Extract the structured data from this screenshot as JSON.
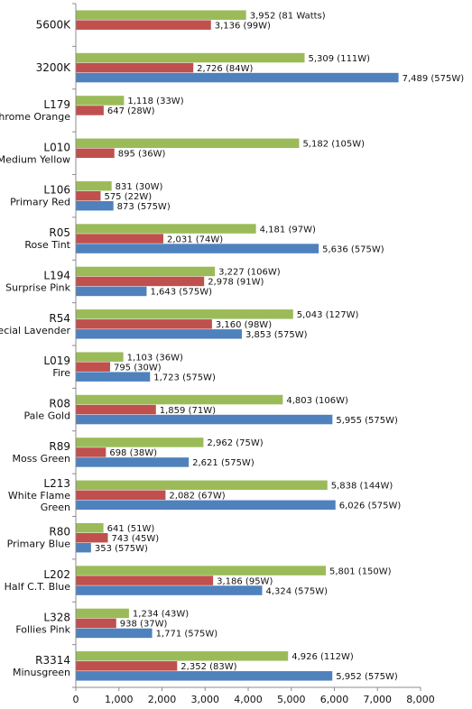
{
  "chart_data": {
    "type": "bar",
    "orientation": "horizontal",
    "xlim": [
      0,
      8000
    ],
    "xticks": [
      "0",
      "1,000",
      "2,000",
      "3,000",
      "4,000",
      "5,000",
      "6,000",
      "7,000",
      "8,000"
    ],
    "grid": false,
    "series_colors": [
      "#9bbb59",
      "#c0504d",
      "#4f81bd"
    ],
    "categories": [
      {
        "label": [
          "5600K"
        ],
        "values": [
          3952,
          3136,
          null
        ],
        "labels": [
          "3,952 (81 Watts)",
          "3,136 (99W)",
          null
        ]
      },
      {
        "label": [
          "3200K"
        ],
        "values": [
          5309,
          2726,
          7489
        ],
        "labels": [
          "5,309 (111W)",
          "2,726 (84W)",
          "7,489 (575W)"
        ]
      },
      {
        "label": [
          "L179",
          "Chrome Orange"
        ],
        "values": [
          1118,
          647,
          null
        ],
        "labels": [
          "1,118 (33W)",
          "647 (28W)",
          null
        ]
      },
      {
        "label": [
          "L010",
          "Medium Yellow"
        ],
        "values": [
          5182,
          895,
          null
        ],
        "labels": [
          "5,182 (105W)",
          "895 (36W)",
          null
        ]
      },
      {
        "label": [
          "L106",
          "Primary Red"
        ],
        "values": [
          831,
          575,
          873
        ],
        "labels": [
          "831 (30W)",
          "575 (22W)",
          "873 (575W)"
        ]
      },
      {
        "label": [
          "R05",
          "Rose Tint"
        ],
        "values": [
          4181,
          2031,
          5636
        ],
        "labels": [
          "4,181 (97W)",
          "2,031 (74W)",
          "5,636 (575W)"
        ]
      },
      {
        "label": [
          "L194",
          "Surprise Pink"
        ],
        "values": [
          3227,
          2978,
          1643
        ],
        "labels": [
          "3,227 (106W)",
          "2,978 (91W)",
          "1,643 (575W)"
        ]
      },
      {
        "label": [
          "R54",
          "Special Lavender"
        ],
        "values": [
          5043,
          3160,
          3853
        ],
        "labels": [
          "5,043 (127W)",
          "3,160 (98W)",
          "3,853 (575W)"
        ]
      },
      {
        "label": [
          "L019",
          "Fire"
        ],
        "values": [
          1103,
          795,
          1723
        ],
        "labels": [
          "1,103 (36W)",
          "795 (30W)",
          "1,723 (575W)"
        ]
      },
      {
        "label": [
          "R08",
          "Pale Gold"
        ],
        "values": [
          4803,
          1859,
          5955
        ],
        "labels": [
          "4,803 (106W)",
          "1,859 (71W)",
          "5,955 (575W)"
        ]
      },
      {
        "label": [
          "R89",
          "Moss Green"
        ],
        "values": [
          2962,
          698,
          2621
        ],
        "labels": [
          "2,962 (75W)",
          "698 (38W)",
          "2,621 (575W)"
        ]
      },
      {
        "label": [
          "L213",
          "White Flame",
          "Green"
        ],
        "values": [
          5838,
          2082,
          6026
        ],
        "labels": [
          "5,838 (144W)",
          "2,082 (67W)",
          "6,026 (575W)"
        ]
      },
      {
        "label": [
          "R80",
          "Primary Blue"
        ],
        "values": [
          641,
          743,
          353
        ],
        "labels": [
          "641 (51W)",
          "743 (45W)",
          "353 (575W)"
        ]
      },
      {
        "label": [
          "L202",
          "Half C.T. Blue"
        ],
        "values": [
          5801,
          3186,
          4324
        ],
        "labels": [
          "5,801 (150W)",
          "3,186 (95W)",
          "4,324 (575W)"
        ]
      },
      {
        "label": [
          "L328",
          "Follies Pink"
        ],
        "values": [
          1234,
          938,
          1771
        ],
        "labels": [
          "1,234 (43W)",
          "938 (37W)",
          "1,771 (575W)"
        ]
      },
      {
        "label": [
          "R3314",
          "Minusgreen"
        ],
        "values": [
          4926,
          2352,
          5952
        ],
        "labels": [
          "4,926 (112W)",
          "2,352 (83W)",
          "5,952 (575W)"
        ]
      }
    ]
  }
}
